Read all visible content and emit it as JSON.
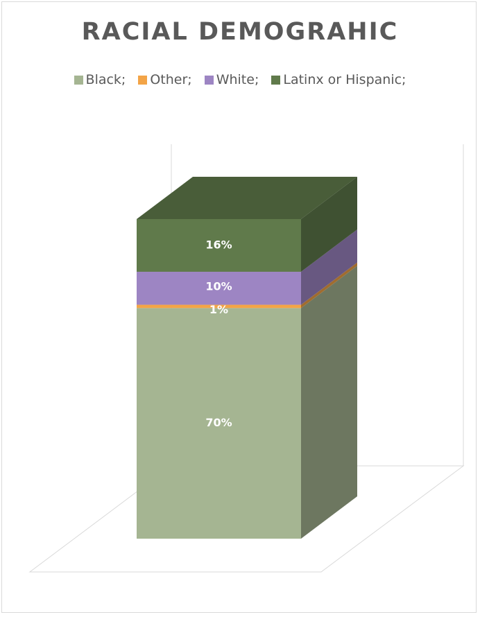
{
  "chart_data": {
    "type": "bar",
    "subtype": "3d-stacked-percent-column",
    "title": "RACIAL DEMOGRAHIC",
    "xlabel": "",
    "ylabel": "",
    "categories": [
      ""
    ],
    "series": [
      {
        "name": "Black;",
        "values": [
          70
        ],
        "label": "70%",
        "color": "#a5b592"
      },
      {
        "name": "Other;",
        "values": [
          1
        ],
        "label": "1%",
        "color": "#f3a447"
      },
      {
        "name": "White;",
        "values": [
          10
        ],
        "label": "10%",
        "color": "#9d85c3"
      },
      {
        "name": "Latinx or Hispanic;",
        "values": [
          16
        ],
        "label": "16%",
        "color": "#607a4b"
      }
    ],
    "legend_position": "top",
    "grid": false,
    "data_labels": true
  }
}
